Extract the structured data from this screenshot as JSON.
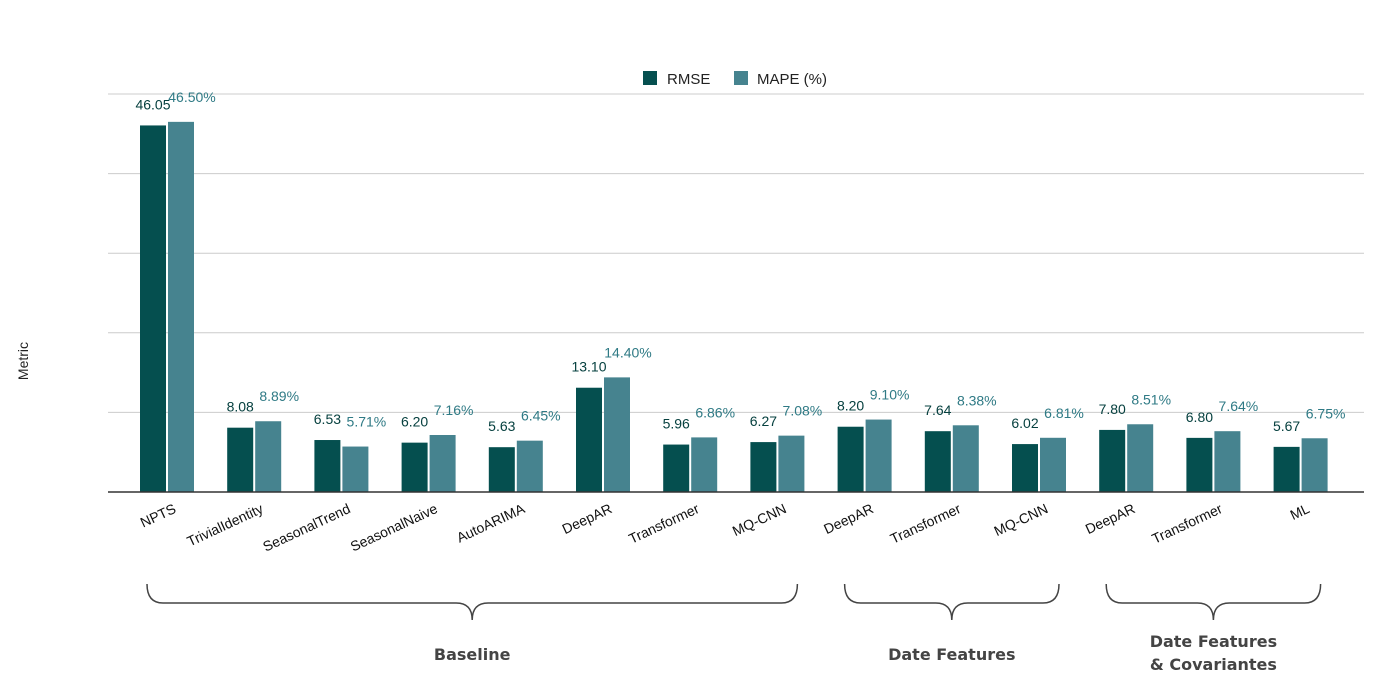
{
  "chart_data": {
    "type": "bar",
    "title": "",
    "xlabel": "",
    "ylabel": "Metric",
    "ylim": [
      0,
      50
    ],
    "grid": true,
    "legend_position": "top-center",
    "categories": [
      "NPTS",
      "TrivialIdentity",
      "SeasonalTrend",
      "SeasonalNaive",
      "AutoARIMA",
      "DeepAR",
      "Transformer",
      "MQ-CNN",
      "DeepAR",
      "Transformer",
      "MQ-CNN",
      "DeepAR",
      "Transformer",
      "ML"
    ],
    "series": [
      {
        "name": "RMSE",
        "color": "#054f4f",
        "values": [
          46.05,
          8.08,
          6.53,
          6.2,
          5.63,
          13.1,
          5.96,
          6.27,
          8.2,
          7.64,
          6.02,
          7.8,
          6.8,
          5.67
        ],
        "labels": [
          "46.05",
          "8.08",
          "6.53",
          "6.20",
          "5.63",
          "13.10",
          "5.96",
          "6.27",
          "8.20",
          "7.64",
          "6.02",
          "7.80",
          "6.80",
          "5.67"
        ]
      },
      {
        "name": "MAPE (%)",
        "color": "#46838f",
        "values": [
          46.5,
          8.89,
          5.71,
          7.16,
          6.45,
          14.4,
          6.86,
          7.08,
          9.1,
          8.38,
          6.81,
          8.51,
          7.64,
          6.75
        ],
        "labels": [
          "46.50%",
          "8.89%",
          "5.71%",
          "7.16%",
          "6.45%",
          "14.40%",
          "6.86%",
          "7.08%",
          "9.10%",
          "8.38%",
          "6.81%",
          "8.51%",
          "7.64%",
          "6.75%"
        ]
      }
    ],
    "groups": [
      {
        "name": "Baseline",
        "lines": [
          "Baseline"
        ],
        "start": 0,
        "end": 7
      },
      {
        "name": "Date Features",
        "lines": [
          "Date Features"
        ],
        "start": 8,
        "end": 10
      },
      {
        "name": "Date Features & Covariantes",
        "lines": [
          "Date Features",
          "& Covariantes"
        ],
        "start": 11,
        "end": 13
      }
    ]
  }
}
